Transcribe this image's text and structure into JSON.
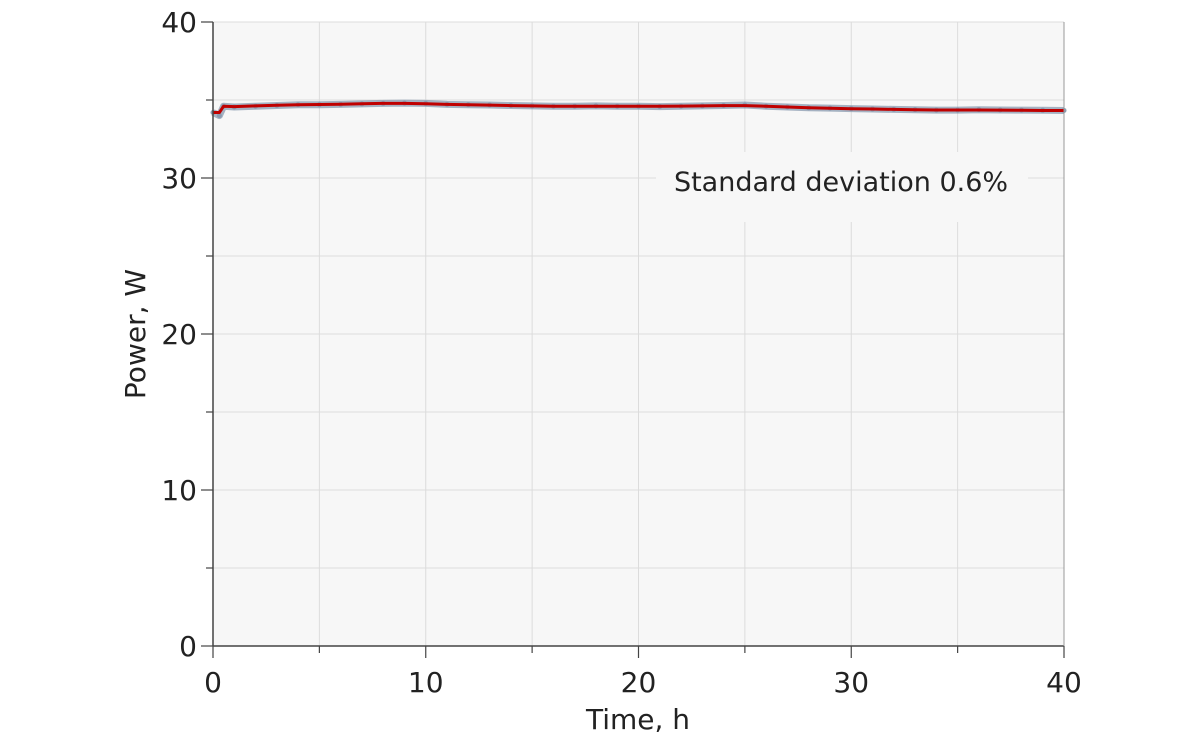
{
  "chart_data": {
    "type": "line",
    "title": "",
    "xlabel": "Time, h",
    "ylabel": "Power, W",
    "xlim": [
      0,
      40
    ],
    "ylim": [
      0,
      40
    ],
    "x_major_ticks": [
      0,
      10,
      20,
      30,
      40
    ],
    "y_major_ticks": [
      0,
      10,
      20,
      30,
      40
    ],
    "x_tick_labels": [
      "0",
      "10",
      "20",
      "30",
      "40"
    ],
    "y_tick_labels": [
      "0",
      "10",
      "20",
      "30",
      "40"
    ],
    "x_minor_step": 5,
    "y_minor_step": 5,
    "grid": true,
    "annotation": "Standard deviation 0.6%",
    "series": [
      {
        "role": "raw-measurements",
        "color": "#8a9bb0",
        "x": [
          0,
          0.3,
          0.5,
          1,
          2,
          3,
          4,
          5,
          6,
          7,
          8,
          9,
          10,
          11,
          12,
          13,
          14,
          15,
          16,
          17,
          18,
          19,
          20,
          21,
          22,
          23,
          24,
          25,
          26,
          27,
          28,
          29,
          30,
          31,
          32,
          33,
          34,
          35,
          36,
          37,
          38,
          39,
          40
        ],
        "y": [
          34.2,
          34.0,
          34.6,
          34.55,
          34.6,
          34.65,
          34.7,
          34.7,
          34.72,
          34.75,
          34.78,
          34.8,
          34.78,
          34.72,
          34.7,
          34.68,
          34.65,
          34.62,
          34.6,
          34.6,
          34.62,
          34.6,
          34.6,
          34.58,
          34.6,
          34.62,
          34.65,
          34.68,
          34.6,
          34.55,
          34.5,
          34.48,
          34.45,
          34.42,
          34.4,
          34.38,
          34.35,
          34.35,
          34.38,
          34.36,
          34.35,
          34.34,
          34.33
        ]
      },
      {
        "role": "smoothed-fit",
        "color": "#c00000",
        "x": [
          0,
          0.3,
          0.5,
          1,
          2,
          3,
          4,
          5,
          6,
          7,
          8,
          9,
          10,
          11,
          12,
          13,
          14,
          15,
          16,
          17,
          18,
          19,
          20,
          21,
          22,
          23,
          24,
          25,
          26,
          27,
          28,
          29,
          30,
          31,
          32,
          33,
          34,
          35,
          36,
          37,
          38,
          39,
          40
        ],
        "y": [
          34.2,
          34.2,
          34.6,
          34.58,
          34.62,
          34.66,
          34.7,
          34.71,
          34.73,
          34.76,
          34.78,
          34.78,
          34.76,
          34.72,
          34.7,
          34.67,
          34.64,
          34.62,
          34.6,
          34.6,
          34.6,
          34.6,
          34.6,
          34.6,
          34.61,
          34.62,
          34.64,
          34.64,
          34.6,
          34.55,
          34.5,
          34.47,
          34.44,
          34.42,
          34.4,
          34.38,
          34.36,
          34.36,
          34.36,
          34.35,
          34.34,
          34.33,
          34.33
        ]
      }
    ]
  }
}
